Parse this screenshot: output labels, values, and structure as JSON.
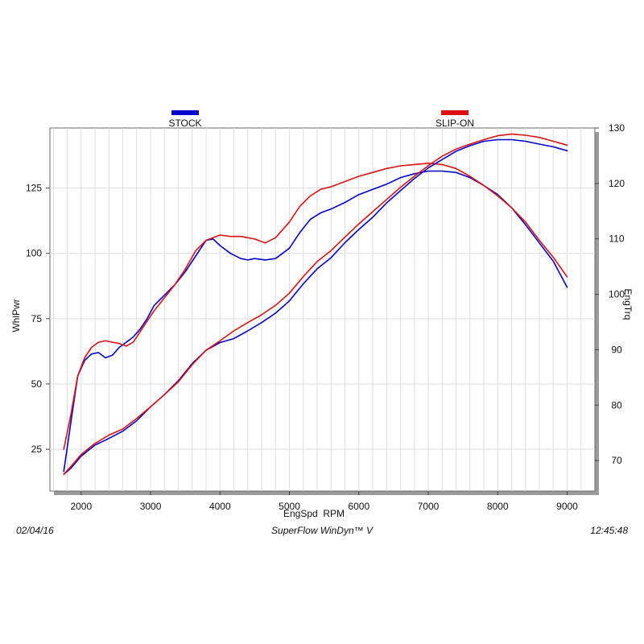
{
  "footer": {
    "date": "02/04/16",
    "software": "SuperFlow WinDyn™ V",
    "time": "12:45:48"
  },
  "chart_data": {
    "type": "line",
    "xlabel": "EngSpd  RPM",
    "ylabel_left": "WhlPwr",
    "ylabel_right": "EngTrq",
    "xlim": [
      1550,
      9400
    ],
    "ylim_left": [
      9,
      148
    ],
    "ylim_right": [
      64.5,
      130
    ],
    "xticks": [
      2000,
      3000,
      4000,
      5000,
      6000,
      7000,
      8000,
      9000
    ],
    "yticks_left": [
      25,
      50,
      75,
      100,
      125
    ],
    "yticks_right": [
      70,
      80,
      90,
      100,
      110,
      120,
      130
    ],
    "grid": true,
    "legend_position": "top",
    "legend": [
      {
        "name": "STOCK",
        "color": "#0000cc"
      },
      {
        "name": "SLIP-ON",
        "color": "#dd1111"
      }
    ],
    "series": [
      {
        "name": "STOCK",
        "metric": "WhlPwr",
        "axis": "left",
        "color": "#0000cc",
        "x": [
          1750,
          1850,
          1950,
          2050,
          2150,
          2250,
          2350,
          2450,
          2550,
          2650,
          2750,
          2850,
          2950,
          3050,
          3200,
          3350,
          3500,
          3650,
          3800,
          3900,
          4000,
          4150,
          4300,
          4400,
          4500,
          4650,
          4800,
          5000,
          5150,
          5300,
          5450,
          5600,
          5800,
          6000,
          6200,
          6400,
          6600,
          6800,
          7000,
          7200,
          7400,
          7600,
          7800,
          8000,
          8200,
          8400,
          8600,
          8800,
          9000
        ],
        "values": [
          16.5,
          35,
          53,
          59,
          61.5,
          62,
          60,
          61,
          64,
          66,
          68,
          71,
          75,
          80,
          84,
          88,
          93,
          99,
          105,
          105.5,
          103,
          100,
          98,
          97.5,
          98,
          97.5,
          98,
          102,
          108,
          113,
          115.5,
          117,
          119.5,
          122.5,
          124.5,
          126.5,
          129,
          130.5,
          131.5,
          131.5,
          131,
          129,
          126,
          122.5,
          117.5,
          111,
          104,
          97,
          87
        ]
      },
      {
        "name": "SLIP-ON",
        "metric": "WhlPwr",
        "axis": "left",
        "color": "#dd1111",
        "x": [
          1750,
          1850,
          1950,
          2050,
          2150,
          2250,
          2350,
          2450,
          2550,
          2650,
          2750,
          2850,
          2950,
          3050,
          3200,
          3350,
          3500,
          3650,
          3800,
          3900,
          4000,
          4150,
          4300,
          4400,
          4500,
          4650,
          4800,
          5000,
          5150,
          5300,
          5450,
          5600,
          5800,
          6000,
          6200,
          6400,
          6600,
          6800,
          7000,
          7200,
          7400,
          7600,
          7800,
          8000,
          8200,
          8400,
          8600,
          8800,
          9000
        ],
        "values": [
          25,
          38,
          53,
          60,
          64,
          66,
          66.5,
          66,
          65.5,
          64.5,
          66,
          70,
          74,
          78,
          83,
          88,
          94,
          101,
          105,
          106,
          107,
          106.5,
          106.5,
          106,
          105.5,
          104,
          106,
          112,
          118,
          122,
          124.5,
          125.5,
          127.5,
          129.5,
          131,
          132.5,
          133.5,
          134,
          134.5,
          134,
          132.5,
          129.5,
          126,
          122,
          117.5,
          112,
          105,
          98.5,
          91
        ]
      },
      {
        "name": "STOCK",
        "metric": "EngTrq",
        "axis": "right",
        "color": "#0000cc",
        "x": [
          1750,
          1850,
          2000,
          2200,
          2400,
          2600,
          2800,
          3000,
          3200,
          3400,
          3600,
          3800,
          4000,
          4200,
          4400,
          4600,
          4800,
          5000,
          5200,
          5400,
          5600,
          5800,
          6000,
          6200,
          6400,
          6600,
          6800,
          7000,
          7200,
          7400,
          7600,
          7800,
          8000,
          8200,
          8400,
          8600,
          8800,
          9000
        ],
        "values": [
          67.5,
          68.6,
          70.8,
          72.8,
          74.0,
          75.3,
          77.2,
          79.7,
          81.9,
          84.4,
          87.5,
          89.9,
          91.3,
          92.0,
          93.4,
          94.9,
          96.6,
          98.8,
          101.9,
          104.6,
          106.6,
          109.3,
          111.7,
          113.9,
          116.5,
          118.7,
          120.9,
          122.8,
          124.3,
          125.8,
          126.8,
          127.6,
          127.9,
          127.9,
          127.6,
          127.1,
          126.6,
          125.9
        ]
      },
      {
        "name": "SLIP-ON",
        "metric": "EngTrq",
        "axis": "right",
        "color": "#dd1111",
        "x": [
          1750,
          1850,
          2000,
          2200,
          2400,
          2600,
          2800,
          3000,
          3200,
          3400,
          3600,
          3800,
          4000,
          4200,
          4400,
          4600,
          4800,
          5000,
          5200,
          5400,
          5600,
          5800,
          6000,
          6200,
          6400,
          6600,
          6800,
          7000,
          7200,
          7400,
          7600,
          7800,
          8000,
          8200,
          8400,
          8600,
          8800,
          9000
        ],
        "values": [
          67.5,
          68.9,
          71.1,
          73.1,
          74.6,
          75.7,
          77.6,
          79.7,
          81.9,
          84.2,
          87.3,
          89.9,
          91.6,
          93.4,
          94.9,
          96.3,
          98.0,
          100.2,
          103.2,
          105.9,
          107.9,
          110.3,
          112.7,
          114.9,
          117.1,
          119.3,
          121.3,
          123.2,
          124.9,
          126.2,
          127.1,
          127.9,
          128.6,
          128.9,
          128.7,
          128.3,
          127.6,
          126.9
        ]
      }
    ]
  }
}
